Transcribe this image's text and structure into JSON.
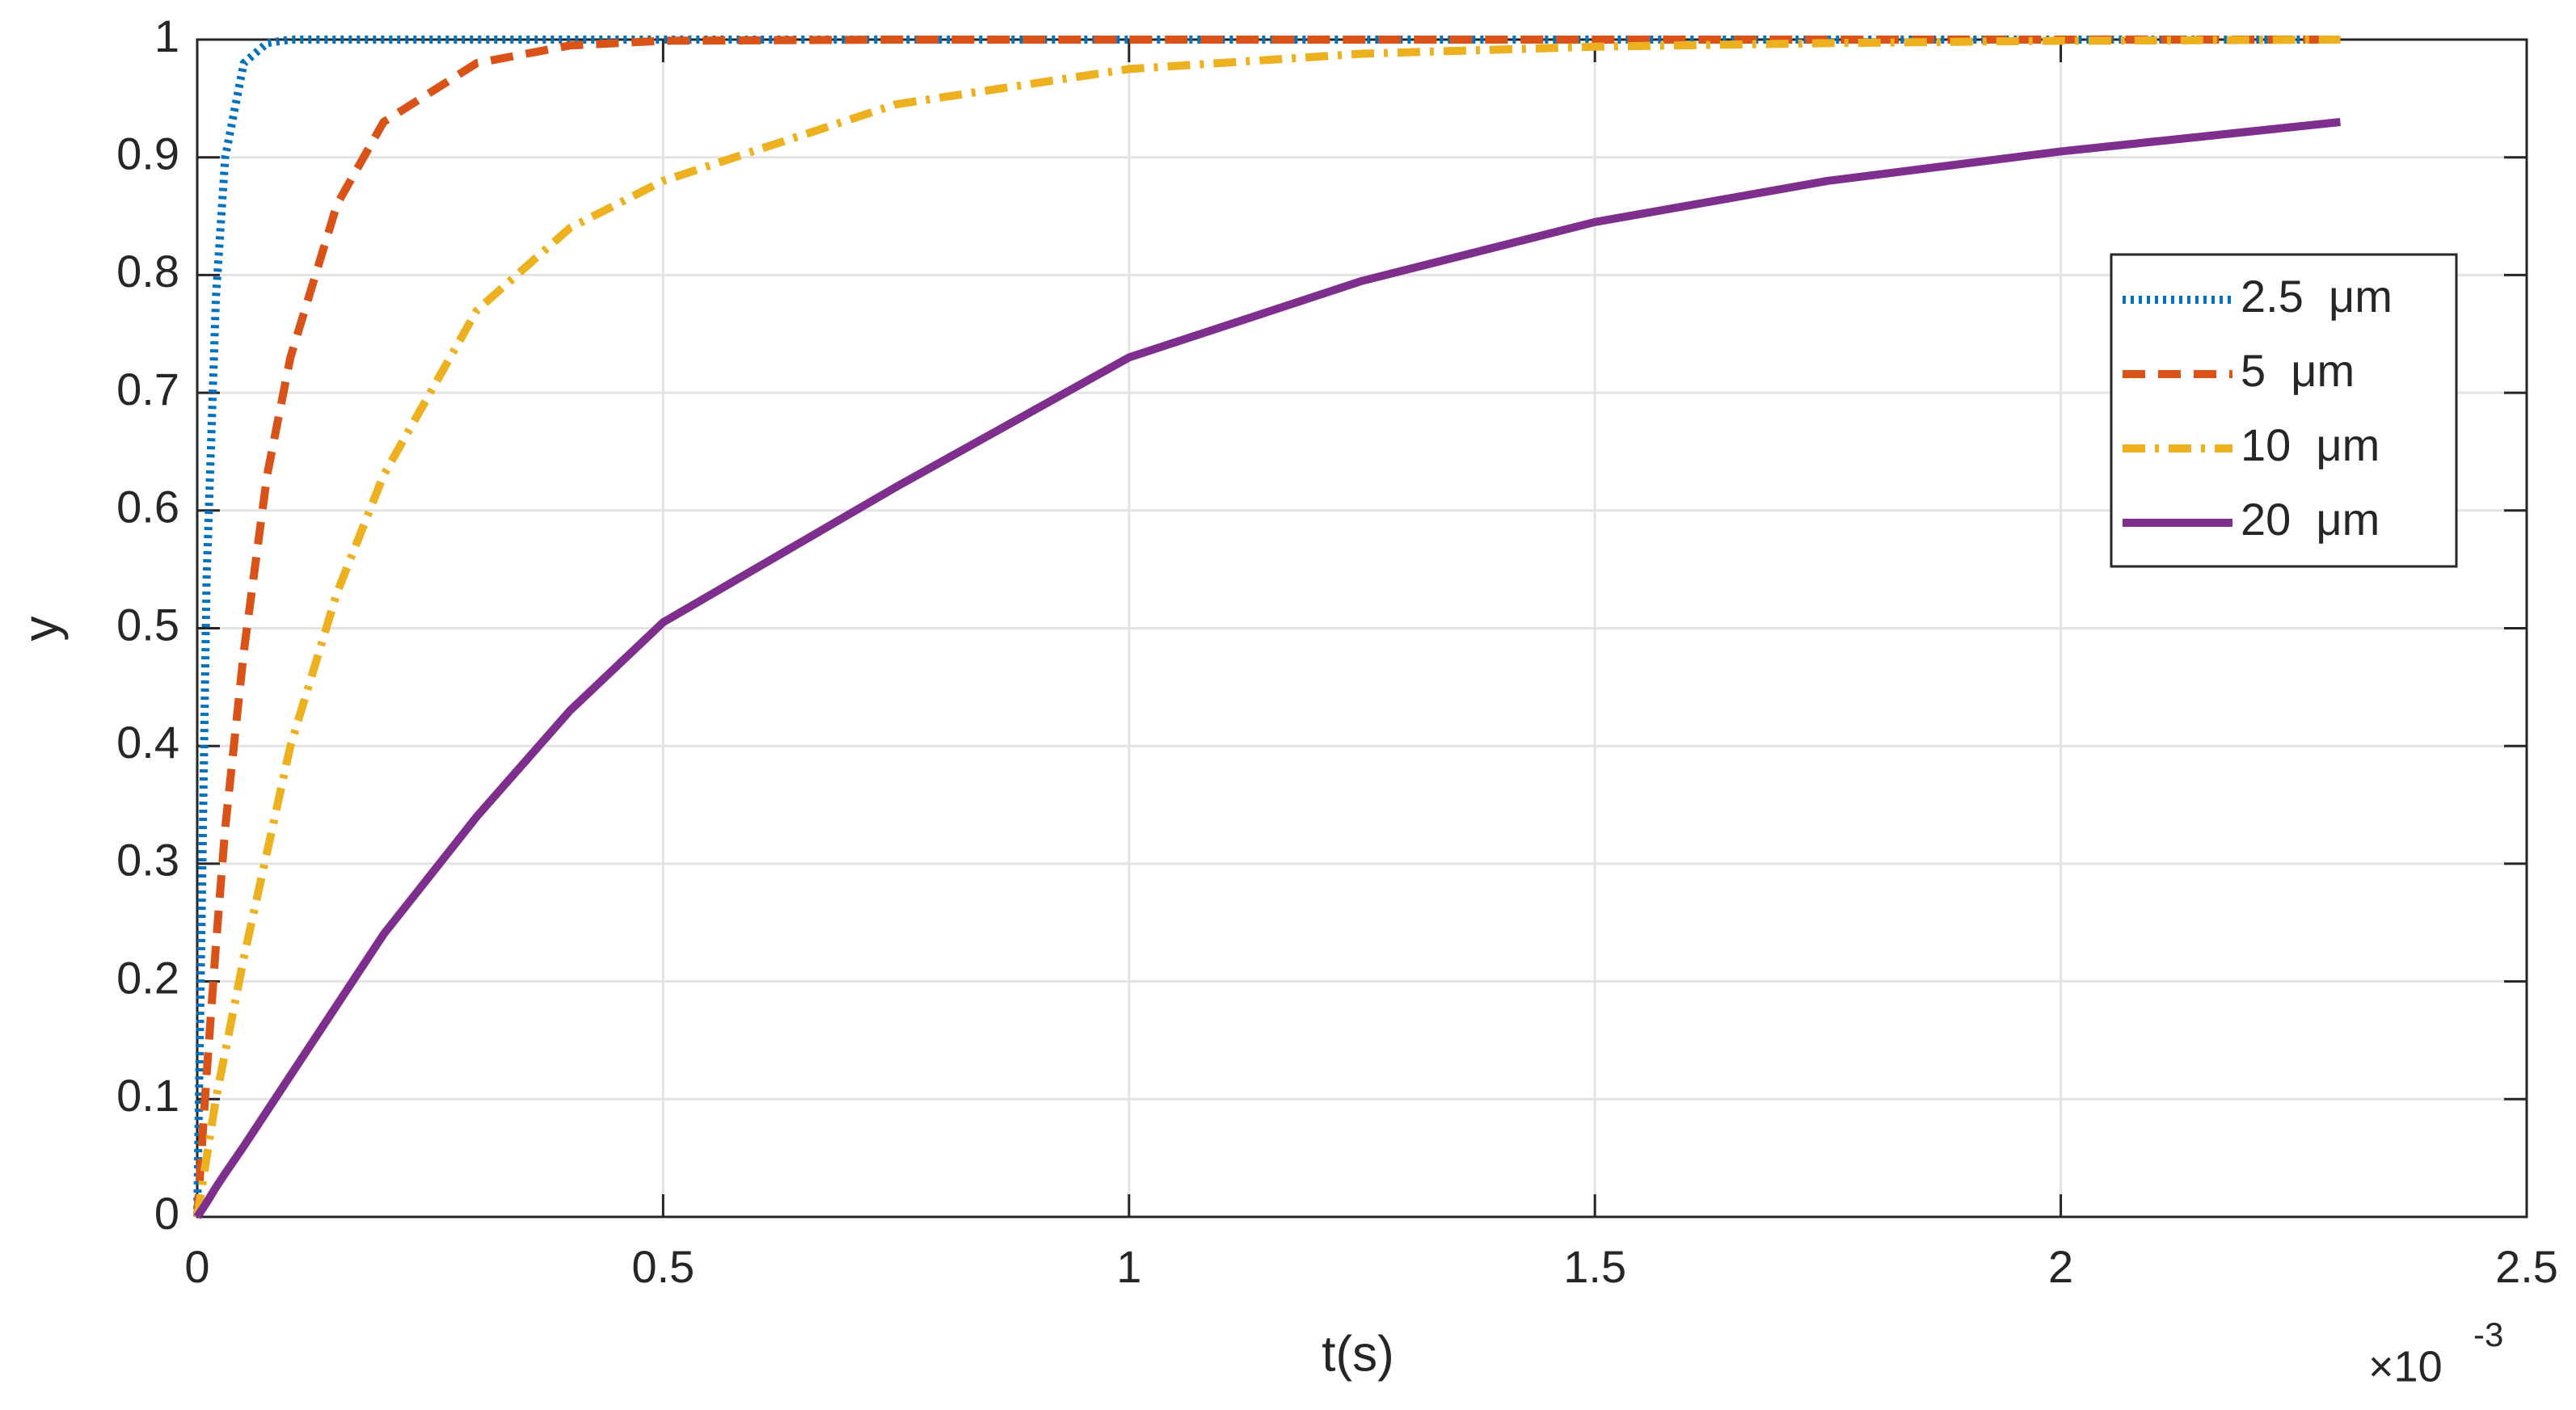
{
  "chart_data": {
    "type": "line",
    "x_label": "t(s)",
    "y_label": "y",
    "x_multiplier": {
      "base": "×10",
      "exponent": "-3"
    },
    "x": [
      0,
      0.01,
      0.02,
      0.03,
      0.05,
      0.075,
      0.1,
      0.15,
      0.2,
      0.3,
      0.4,
      0.5,
      0.75,
      1,
      1.25,
      1.5,
      1.75,
      2,
      2.3
    ],
    "series": [
      {
        "name": "2.5  μm",
        "color": "#0072bd",
        "line_style": "dotted",
        "values": [
          0,
          0.54,
          0.78,
          0.9,
          0.98,
          0.997,
          1,
          1,
          1,
          1,
          1,
          1,
          1,
          1,
          1,
          1,
          1,
          1,
          1
        ]
      },
      {
        "name": "5  μm",
        "color": "#d95319",
        "line_style": "dashed",
        "values": [
          0,
          0.12,
          0.23,
          0.33,
          0.48,
          0.63,
          0.73,
          0.86,
          0.93,
          0.98,
          0.995,
          0.999,
          1,
          1,
          1,
          1,
          1,
          1,
          1
        ]
      },
      {
        "name": "10  μm",
        "color": "#edb120",
        "line_style": "dashdot",
        "values": [
          0,
          0.05,
          0.1,
          0.14,
          0.22,
          0.31,
          0.4,
          0.53,
          0.63,
          0.77,
          0.84,
          0.88,
          0.945,
          0.975,
          0.988,
          0.994,
          0.997,
          0.999,
          1
        ]
      },
      {
        "name": "20  μm",
        "color": "#7e2f8e",
        "line_style": "solid",
        "values": [
          0,
          0.012,
          0.025,
          0.037,
          0.06,
          0.09,
          0.12,
          0.18,
          0.24,
          0.34,
          0.43,
          0.505,
          0.62,
          0.73,
          0.795,
          0.845,
          0.88,
          0.905,
          0.93
        ]
      }
    ],
    "xlim": [
      0,
      2.5
    ],
    "xticks": [
      0,
      0.5,
      1,
      1.5,
      2,
      2.5
    ],
    "ylim": [
      0,
      1
    ],
    "yticks": [
      0,
      0.1,
      0.2,
      0.3,
      0.4,
      0.5,
      0.6,
      0.7,
      0.8,
      0.9,
      1
    ],
    "grid": true,
    "legend_position": "upper right"
  }
}
